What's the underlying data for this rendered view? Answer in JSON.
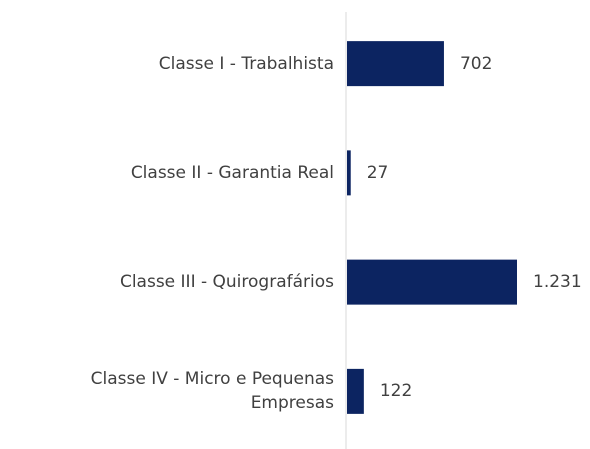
{
  "chart_data": {
    "type": "bar",
    "orientation": "horizontal",
    "categories": [
      "Classe I - Trabalhista",
      "Classe II - Garantia Real",
      "Classe III - Quirografários",
      "Classe IV - Micro e Pequenas Empresas"
    ],
    "values": [
      702,
      27,
      1231,
      122
    ],
    "value_labels": [
      "702",
      "27",
      "1.231",
      "122"
    ],
    "color": "#0c2461"
  }
}
